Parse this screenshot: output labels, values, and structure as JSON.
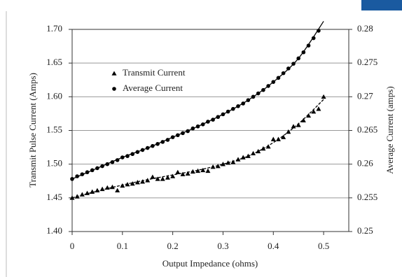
{
  "chart_data": {
    "type": "scatter",
    "xlabel": "Output Impedance (ohms)",
    "ylabel": "Transmit Pulse Current (Amps)",
    "y2label": "Average Current (amps)",
    "xlim": [
      0,
      0.55
    ],
    "xticks": [
      0,
      0.1,
      0.2,
      0.3,
      0.4,
      0.5
    ],
    "ylim": [
      1.4,
      1.7
    ],
    "yticks": [
      {
        "value": 1.4,
        "label": "1.40"
      },
      1.45,
      {
        "value": 1.5,
        "label": "1.50"
      },
      1.55,
      {
        "value": 1.6,
        "label": "1.60"
      },
      1.65,
      {
        "value": 1.7,
        "label": "1.70"
      }
    ],
    "y2lim": [
      0.25,
      0.28
    ],
    "y2ticks": [
      0.25,
      0.255,
      0.26,
      0.265,
      0.27,
      0.275,
      0.28
    ],
    "grid": true,
    "series": [
      {
        "name": "Transmit Current",
        "marker": "triangle",
        "color": "#000000",
        "x": [
          0,
          0.01,
          0.02,
          0.03,
          0.04,
          0.05,
          0.06,
          0.07,
          0.08,
          0.09,
          0.1,
          0.11,
          0.12,
          0.13,
          0.14,
          0.15,
          0.16,
          0.17,
          0.18,
          0.19,
          0.2,
          0.21,
          0.22,
          0.23,
          0.24,
          0.25,
          0.26,
          0.27,
          0.28,
          0.29,
          0.3,
          0.31,
          0.32,
          0.33,
          0.34,
          0.35,
          0.36,
          0.37,
          0.38,
          0.39,
          0.4,
          0.41,
          0.42,
          0.43,
          0.44,
          0.45,
          0.46,
          0.47,
          0.48,
          0.49,
          0.5
        ],
        "values": [
          1.45,
          1.452,
          1.455,
          1.457,
          1.459,
          1.461,
          1.463,
          1.465,
          1.466,
          1.461,
          1.468,
          1.47,
          1.471,
          1.473,
          1.474,
          1.476,
          1.481,
          1.478,
          1.478,
          1.48,
          1.482,
          1.488,
          1.485,
          1.486,
          1.489,
          1.49,
          1.491,
          1.49,
          1.496,
          1.497,
          1.5,
          1.502,
          1.503,
          1.507,
          1.51,
          1.512,
          1.516,
          1.519,
          1.523,
          1.526,
          1.537,
          1.537,
          1.54,
          1.548,
          1.556,
          1.558,
          1.565,
          1.572,
          1.578,
          1.582,
          1.6
        ],
        "trend_x": [
          0,
          0.05,
          0.1,
          0.15,
          0.2,
          0.25,
          0.3,
          0.35,
          0.4,
          0.45,
          0.5
        ],
        "trend": [
          1.45,
          1.46,
          1.469,
          1.477,
          1.484,
          1.491,
          1.5,
          1.512,
          1.532,
          1.56,
          1.596
        ],
        "trend_dash": true
      },
      {
        "name": "Average Current",
        "marker": "circle",
        "color": "#000000",
        "axis": "y2",
        "x": [
          0,
          0.01,
          0.02,
          0.03,
          0.04,
          0.05,
          0.06,
          0.07,
          0.08,
          0.09,
          0.1,
          0.11,
          0.12,
          0.13,
          0.14,
          0.15,
          0.16,
          0.17,
          0.18,
          0.19,
          0.2,
          0.21,
          0.22,
          0.23,
          0.24,
          0.25,
          0.26,
          0.27,
          0.28,
          0.29,
          0.3,
          0.31,
          0.32,
          0.33,
          0.34,
          0.35,
          0.36,
          0.37,
          0.38,
          0.39,
          0.4,
          0.41,
          0.42,
          0.43,
          0.44,
          0.45,
          0.46,
          0.47,
          0.48,
          0.49
        ],
        "values": [
          0.2578,
          0.2582,
          0.2585,
          0.2588,
          0.2591,
          0.2594,
          0.2597,
          0.26,
          0.2603,
          0.2606,
          0.261,
          0.2612,
          0.2615,
          0.2618,
          0.2621,
          0.2624,
          0.2627,
          0.263,
          0.2633,
          0.2636,
          0.264,
          0.2643,
          0.2646,
          0.2649,
          0.2653,
          0.2656,
          0.2659,
          0.2663,
          0.2666,
          0.267,
          0.2674,
          0.2678,
          0.2682,
          0.2686,
          0.269,
          0.2695,
          0.27,
          0.2705,
          0.271,
          0.2716,
          0.2722,
          0.2728,
          0.2735,
          0.2742,
          0.2749,
          0.2757,
          0.2766,
          0.2776,
          0.2787,
          0.2798
        ],
        "trend_x": [
          0,
          0.05,
          0.1,
          0.15,
          0.2,
          0.25,
          0.3,
          0.35,
          0.4,
          0.45,
          0.5
        ],
        "trend": [
          0.2578,
          0.2594,
          0.261,
          0.2624,
          0.264,
          0.2656,
          0.2674,
          0.2695,
          0.2722,
          0.2757,
          0.2812
        ],
        "trend_dash": false
      }
    ]
  }
}
